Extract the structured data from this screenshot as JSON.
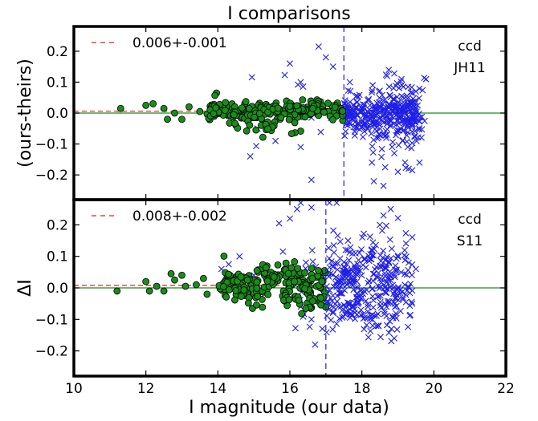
{
  "chart_data": {
    "type": "scatter",
    "title": "I comparisons",
    "xlabel": "I magnitude (our data)",
    "xlim": [
      10,
      22
    ],
    "x_ticks": [
      "10",
      "12",
      "14",
      "16",
      "18",
      "20",
      "22"
    ],
    "colors": {
      "green_points": "#1a8c1a",
      "green_edge": "#000000",
      "blue_points": "#1f1fe6",
      "mean_line": "#e02020",
      "zero_line": "#1a8c1a",
      "cut_line": "#1f1fe6"
    },
    "panels": [
      {
        "ylabel": "(ours-theirs)",
        "ylim": [
          -0.28,
          0.28
        ],
        "y_ticks": [
          {
            "value": 0.2,
            "label": "0.2"
          },
          {
            "value": 0.1,
            "label": "0.1"
          },
          {
            "value": 0.0,
            "label": "0.0"
          },
          {
            "value": -0.1,
            "label": "−0.1"
          },
          {
            "value": -0.2,
            "label": "−0.2"
          }
        ],
        "legend": "0.006+-0.001",
        "annotation": [
          "ccd",
          "JH11"
        ],
        "mean_offset": 0.006,
        "mag_cut": 17.5,
        "green_points": {
          "seed": 11,
          "fixed": [
            [
              11.3,
              0.015
            ],
            [
              12.0,
              0.025
            ],
            [
              12.2,
              0.03
            ],
            [
              12.5,
              0.015
            ],
            [
              12.8,
              0.0
            ],
            [
              13.2,
              0.02
            ],
            [
              13.5,
              0.005
            ],
            [
              13.0,
              -0.02
            ],
            [
              12.6,
              -0.02
            ],
            [
              13.9,
              -0.01
            ],
            [
              14.5,
              -0.04
            ]
          ],
          "clusters": [
            {
              "n": 230,
              "xmin": 13.7,
              "xmax": 17.5,
              "ymean": 0.008,
              "ysd": 0.016
            },
            {
              "n": 20,
              "xmin": 14.4,
              "xmax": 16.3,
              "ymean": -0.045,
              "ysd": 0.02
            }
          ]
        },
        "blue_points": {
          "seed": 23,
          "fixed": [
            [
              16.8,
              0.215
            ],
            [
              17.0,
              0.18
            ],
            [
              16.0,
              0.16
            ],
            [
              17.2,
              0.15
            ],
            [
              16.3,
              0.1
            ],
            [
              16.6,
              -0.015
            ],
            [
              15.1,
              -0.05
            ],
            [
              15.6,
              -0.09
            ],
            [
              14.9,
              -0.14
            ],
            [
              16.3,
              -0.11
            ],
            [
              18.6,
              -0.07
            ],
            [
              18.9,
              -0.13
            ],
            [
              19.2,
              -0.16
            ],
            [
              19.3,
              -0.18
            ],
            [
              19.4,
              -0.185
            ],
            [
              19.0,
              -0.19
            ],
            [
              19.6,
              -0.16
            ],
            [
              18.3,
              0.09
            ],
            [
              18.7,
              0.12
            ],
            [
              19.5,
              0.07
            ],
            [
              19.1,
              0.11
            ]
          ],
          "clusters": [
            {
              "n": 320,
              "xmin": 17.5,
              "xmax": 19.6,
              "ymean": 0.0,
              "ysd": 0.035
            },
            {
              "n": 70,
              "xmin": 18.2,
              "xmax": 19.8,
              "ymean": 0.0,
              "ysd": 0.08
            },
            {
              "n": 12,
              "xmin": 14.8,
              "xmax": 17.4,
              "ymean": 0.0,
              "ysd": 0.09
            }
          ]
        }
      },
      {
        "ylabel": "ΔI",
        "ylim": [
          -0.28,
          0.28
        ],
        "y_ticks": [
          {
            "value": 0.2,
            "label": "0.2"
          },
          {
            "value": 0.1,
            "label": "0.1"
          },
          {
            "value": 0.0,
            "label": "0.0"
          },
          {
            "value": -0.1,
            "label": "−0.1"
          },
          {
            "value": -0.2,
            "label": "−0.2"
          }
        ],
        "legend": "0.008+-0.002",
        "annotation": [
          "ccd",
          "S11"
        ],
        "mean_offset": 0.008,
        "mag_cut": 17.0,
        "green_points": {
          "seed": 37,
          "fixed": [
            [
              11.2,
              -0.01
            ],
            [
              12.0,
              0.02
            ],
            [
              12.1,
              -0.01
            ],
            [
              12.3,
              0.005
            ],
            [
              12.7,
              0.045
            ],
            [
              12.8,
              0.025
            ],
            [
              13.0,
              0.04
            ],
            [
              13.1,
              0.005
            ],
            [
              13.4,
              0.01
            ],
            [
              13.6,
              0.03
            ],
            [
              13.7,
              -0.02
            ],
            [
              12.5,
              -0.01
            ]
          ],
          "clusters": [
            {
              "n": 200,
              "xmin": 14.0,
              "xmax": 17.0,
              "ymean": 0.01,
              "ysd": 0.03
            },
            {
              "n": 25,
              "xmin": 15.8,
              "xmax": 17.0,
              "ymean": -0.04,
              "ysd": 0.02
            }
          ]
        },
        "blue_points": {
          "seed": 53,
          "fixed": [
            [
              16.3,
              0.27
            ],
            [
              16.6,
              0.255
            ],
            [
              16.2,
              0.25
            ],
            [
              17.1,
              0.27
            ],
            [
              16.0,
              0.22
            ],
            [
              15.7,
              0.205
            ],
            [
              14.6,
              0.1
            ],
            [
              14.1,
              0.06
            ],
            [
              14.3,
              0.075
            ],
            [
              15.0,
              0.04
            ],
            [
              16.3,
              -0.06
            ],
            [
              16.6,
              -0.1
            ],
            [
              16.9,
              -0.13
            ],
            [
              16.7,
              -0.18
            ],
            [
              18.6,
              0.23
            ],
            [
              18.8,
              0.25
            ],
            [
              18.5,
              0.2
            ],
            [
              19.3,
              0.08
            ],
            [
              19.5,
              0.06
            ],
            [
              18.3,
              -0.12
            ],
            [
              18.9,
              -0.16
            ],
            [
              19.4,
              -0.05
            ],
            [
              17.3,
              0.27
            ]
          ],
          "clusters": [
            {
              "n": 260,
              "xmin": 17.0,
              "xmax": 19.4,
              "ymean": 0.03,
              "ysd": 0.07
            },
            {
              "n": 100,
              "xmin": 17.0,
              "xmax": 19.0,
              "ymean": -0.05,
              "ysd": 0.05
            },
            {
              "n": 20,
              "xmin": 15.8,
              "xmax": 17.0,
              "ymean": 0.02,
              "ysd": 0.08
            }
          ]
        }
      }
    ]
  }
}
